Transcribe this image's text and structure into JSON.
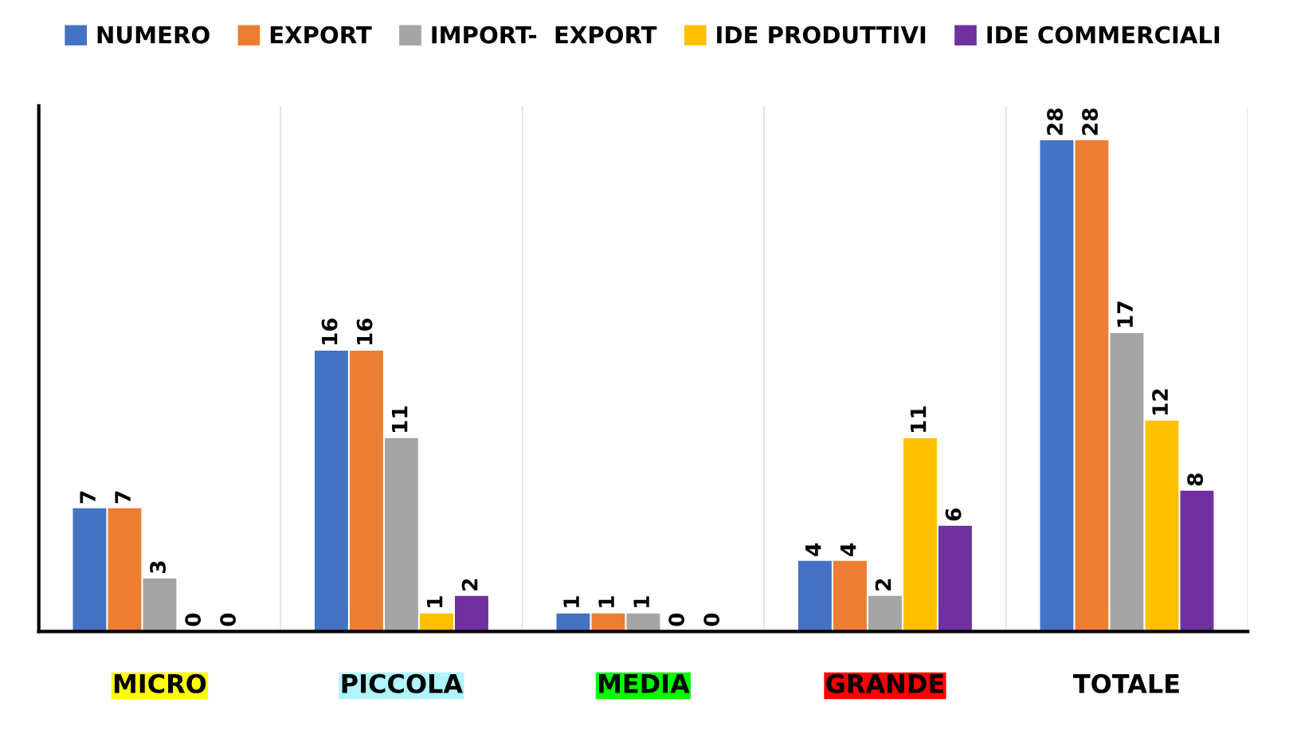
{
  "chart_data": {
    "type": "bar",
    "categories": [
      "MICRO",
      "PICCOLA",
      "MEDIA",
      "GRANDE",
      "TOTALE"
    ],
    "series": [
      {
        "name": "NUMERO",
        "color": "#4472c4",
        "values": [
          7,
          16,
          1,
          4,
          28
        ]
      },
      {
        "name": "EXPORT",
        "color": "#ed7d31",
        "values": [
          7,
          16,
          1,
          4,
          28
        ]
      },
      {
        "name": "IMPORT-  EXPORT",
        "color": "#a5a5a5",
        "values": [
          3,
          11,
          1,
          2,
          17
        ]
      },
      {
        "name": "IDE PRODUTTIVI",
        "color": "#ffc000",
        "values": [
          0,
          1,
          0,
          11,
          12
        ]
      },
      {
        "name": "IDE COMMERCIALI",
        "color": "#7030a0",
        "values": [
          0,
          2,
          0,
          6,
          8
        ]
      }
    ],
    "ylim": [
      0,
      30
    ],
    "tick_labels": "x",
    "data_labels": true,
    "grid": "x",
    "legend": "top"
  }
}
